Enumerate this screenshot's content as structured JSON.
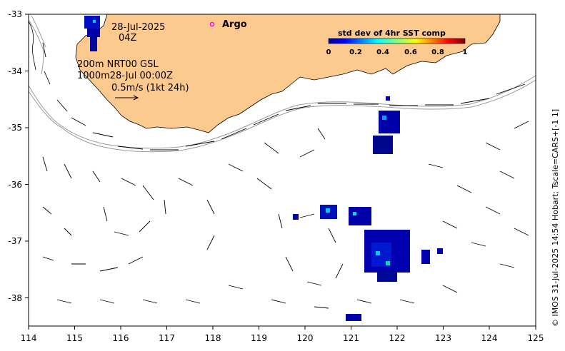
{
  "map": {
    "annotations": {
      "date": "28-Jul-2025",
      "hour": "04Z",
      "line1": "200m  NRT00 GSL",
      "line2": "1000m28-Jul 00:00Z",
      "scale_label": "0.5m/s (1kt 24h)"
    },
    "argo_label": "Argo",
    "legend": {
      "title": "std dev of 4hr SST comp",
      "ticks": [
        "0",
        "0.2",
        "0.4",
        "0.6",
        "0.8",
        "1"
      ]
    },
    "copyright": "© IMOS 31-Jul-2025 14:54 Hobart; Tscale=CARS+[-1 1]",
    "x_axis": {
      "ticks": [
        "114",
        "115",
        "116",
        "117",
        "118",
        "119",
        "120",
        "121",
        "122",
        "123",
        "124",
        "125"
      ]
    },
    "y_axis": {
      "ticks": [
        "-33",
        "-34",
        "-35",
        "-36",
        "-37",
        "-38"
      ]
    },
    "colors": {
      "land": "#fcc98f",
      "ocean": "#ffffff",
      "contour": "#999999",
      "argo": "#ff00ff",
      "sst_low": "#00008f",
      "sst_mid": "#00c8ff"
    }
  }
}
